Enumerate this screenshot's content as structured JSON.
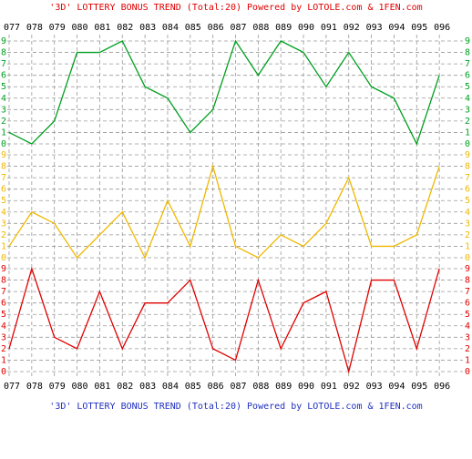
{
  "chart_data": [
    {
      "type": "line",
      "title": "'3D' LOTTERY BONUS TREND (Total:20)  Powered by LOTOLE.com & 1FEN.com",
      "categories": [
        "077",
        "078",
        "079",
        "080",
        "081",
        "082",
        "083",
        "084",
        "085",
        "086",
        "087",
        "088",
        "089",
        "090",
        "091",
        "092",
        "093",
        "094",
        "095",
        "096"
      ],
      "values": [
        1,
        0,
        2,
        8,
        8,
        9,
        5,
        4,
        1,
        3,
        9,
        6,
        9,
        8,
        5,
        8,
        5,
        4,
        0,
        6
      ],
      "color": "#00a020",
      "ylim": [
        0,
        9
      ],
      "yticks": [
        0,
        1,
        2,
        3,
        4,
        5,
        6,
        7,
        8,
        9
      ],
      "grid": true
    },
    {
      "type": "line",
      "values": [
        1,
        4,
        3,
        0,
        2,
        4,
        0,
        5,
        1,
        8,
        1,
        0,
        2,
        1,
        3,
        7,
        1,
        1,
        2,
        8
      ],
      "color": "#f0b800",
      "ylim": [
        0,
        9
      ],
      "yticks": [
        0,
        1,
        2,
        3,
        4,
        5,
        6,
        7,
        8,
        9
      ],
      "grid": true
    },
    {
      "type": "line",
      "values": [
        2,
        9,
        3,
        2,
        7,
        2,
        6,
        6,
        8,
        2,
        1,
        8,
        2,
        6,
        7,
        0,
        8,
        8,
        2,
        9
      ],
      "color": "#e00000",
      "ylim": [
        0,
        9
      ],
      "yticks": [
        0,
        1,
        2,
        3,
        4,
        5,
        6,
        7,
        8,
        9
      ],
      "grid": true
    }
  ]
}
